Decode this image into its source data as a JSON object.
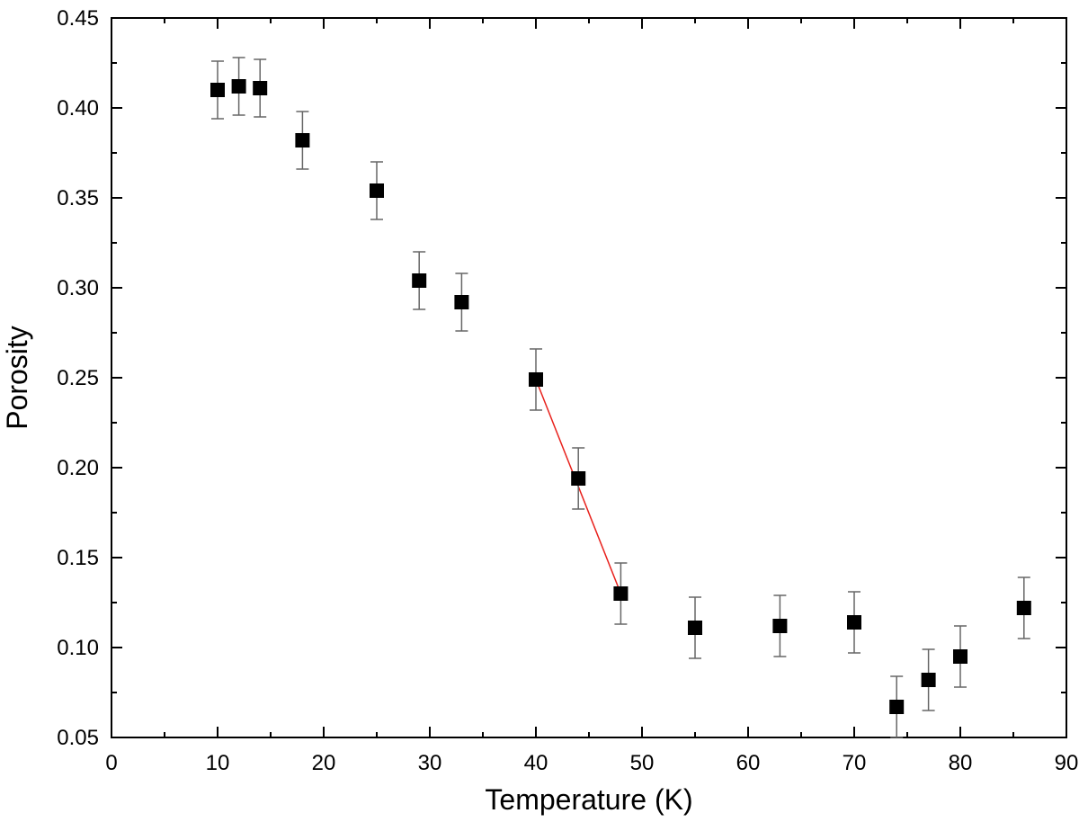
{
  "chart_data": {
    "type": "scatter",
    "title": "",
    "xlabel": "Temperature (K)",
    "ylabel": "Porosity",
    "xlim": [
      0,
      90
    ],
    "ylim": [
      0.05,
      0.45
    ],
    "xticks": [
      0,
      10,
      20,
      30,
      40,
      50,
      60,
      70,
      80,
      90
    ],
    "xtick_labels": [
      "0",
      "10",
      "20",
      "30",
      "40",
      "50",
      "60",
      "70",
      "80",
      "90"
    ],
    "yticks": [
      0.05,
      0.1,
      0.15,
      0.2,
      0.25,
      0.3,
      0.35,
      0.4,
      0.45
    ],
    "ytick_labels": [
      "0.05",
      "0.10",
      "0.15",
      "0.20",
      "0.25",
      "0.30",
      "0.35",
      "0.40",
      "0.45"
    ],
    "grid": false,
    "legend": "none",
    "series": [
      {
        "marker": "filled-square",
        "color": "#000000",
        "error_bar_color": "#666666",
        "points": [
          {
            "x": 10,
            "y": 0.41,
            "err": 0.016
          },
          {
            "x": 12,
            "y": 0.412,
            "err": 0.016
          },
          {
            "x": 14,
            "y": 0.411,
            "err": 0.016
          },
          {
            "x": 18,
            "y": 0.382,
            "err": 0.016
          },
          {
            "x": 25,
            "y": 0.354,
            "err": 0.016
          },
          {
            "x": 29,
            "y": 0.304,
            "err": 0.016
          },
          {
            "x": 33,
            "y": 0.292,
            "err": 0.016
          },
          {
            "x": 40,
            "y": 0.249,
            "err": 0.017
          },
          {
            "x": 44,
            "y": 0.194,
            "err": 0.017
          },
          {
            "x": 48,
            "y": 0.13,
            "err": 0.017
          },
          {
            "x": 55,
            "y": 0.111,
            "err": 0.017
          },
          {
            "x": 63,
            "y": 0.112,
            "err": 0.017
          },
          {
            "x": 70,
            "y": 0.114,
            "err": 0.017
          },
          {
            "x": 74,
            "y": 0.067,
            "err": 0.017
          },
          {
            "x": 77,
            "y": 0.082,
            "err": 0.017
          },
          {
            "x": 80,
            "y": 0.095,
            "err": 0.017
          },
          {
            "x": 86,
            "y": 0.122,
            "err": 0.017
          }
        ]
      }
    ],
    "fit_line": {
      "color": "#e8211c",
      "x": [
        40,
        48
      ],
      "y": [
        0.249,
        0.13
      ]
    }
  }
}
